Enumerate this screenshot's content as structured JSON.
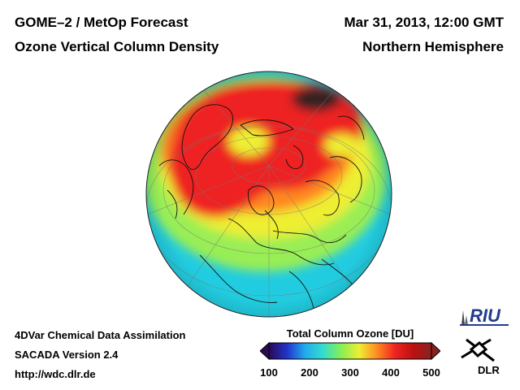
{
  "header": {
    "left_line1": "GOME–2 / MetOp Forecast",
    "left_line2": "Ozone Vertical Column Density",
    "right_line1": "Mar 31, 2013, 12:00 GMT",
    "right_line2": "Northern Hemisphere"
  },
  "footer": {
    "line1": "4DVar Chemical Data Assimilation",
    "line2": "SACADA Version 2.4",
    "line3": "http://wdc.dlr.de"
  },
  "colorbar": {
    "title": "Total Column Ozone [DU]",
    "min": 100,
    "max": 500,
    "ticks": [
      "100",
      "200",
      "300",
      "400",
      "500"
    ],
    "stops": [
      "#2a0a55",
      "#2233cc",
      "#22aaee",
      "#33ddcc",
      "#88ee55",
      "#eeee33",
      "#ff8822",
      "#ee2222",
      "#bb1111",
      "#882222"
    ]
  },
  "map": {
    "projection": "orthographic",
    "region": "Northern Hemisphere",
    "colors": {
      "background": "#33ddcc",
      "low": "#22cce0",
      "mid": "#99ee55",
      "yellow": "#eeee33",
      "orange": "#ff8822",
      "high": "#ee2222",
      "peak": "#332222"
    }
  },
  "logos": {
    "riu": "RIU",
    "dlr": "DLR"
  }
}
